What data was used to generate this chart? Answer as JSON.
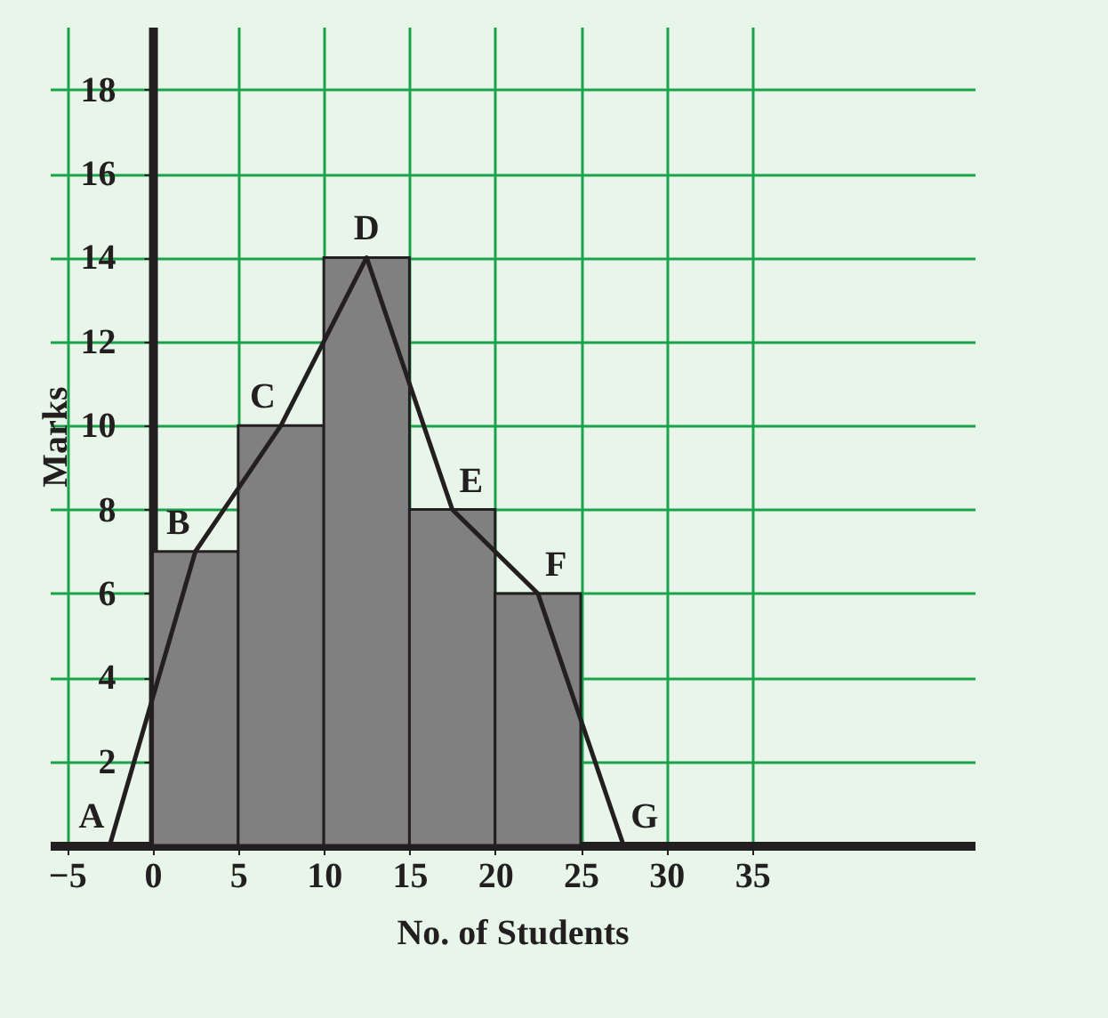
{
  "chart_data": {
    "type": "histogram",
    "xlabel": "No. of Students",
    "ylabel": "Marks",
    "bins": [
      0,
      5,
      10,
      15,
      20,
      25
    ],
    "values": [
      7,
      10,
      14,
      8,
      6
    ],
    "color": "#808080",
    "series": [
      {
        "type": "line",
        "x": [
          -2.5,
          2.5,
          7.5,
          12.5,
          17.5,
          22.5,
          27.5
        ],
        "values": [
          0,
          7,
          10,
          14,
          8,
          6,
          0
        ],
        "color": "#231f20"
      }
    ],
    "annotations": [
      {
        "text": "A",
        "x": -2.5,
        "y": 0
      },
      {
        "text": "B",
        "x": 2.5,
        "y": 7
      },
      {
        "text": "C",
        "x": 7.5,
        "y": 10
      },
      {
        "text": "D",
        "x": 12.5,
        "y": 14
      },
      {
        "text": "E",
        "x": 17.5,
        "y": 8
      },
      {
        "text": "F",
        "x": 22.5,
        "y": 6
      },
      {
        "text": "G",
        "x": 27.5,
        "y": 0
      }
    ],
    "xlim": [
      -6,
      48
    ],
    "ylim": [
      0,
      19.5
    ],
    "xticks": [
      -5,
      0,
      5,
      10,
      15,
      20,
      25,
      30,
      35
    ],
    "yticks": [
      2,
      4,
      6,
      8,
      10,
      12,
      14,
      16,
      18
    ],
    "grid": true,
    "marker": "none",
    "line_style": "solid"
  }
}
